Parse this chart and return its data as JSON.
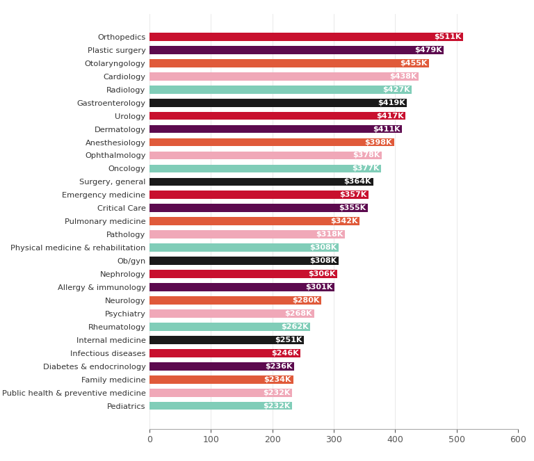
{
  "categories": [
    "Orthopedics",
    "Plastic surgery",
    "Otolaryngology",
    "Cardiology",
    "Radiology",
    "Gastroenterology",
    "Urology",
    "Dermatology",
    "Anesthesiology",
    "Ophthalmology",
    "Oncology",
    "Surgery, general",
    "Emergency medicine",
    "Critical Care",
    "Pulmonary medicine",
    "Pathology",
    "Physical medicine & rehabilitation",
    "Ob/gyn",
    "Nephrology",
    "Allergy & immunology",
    "Neurology",
    "Psychiatry",
    "Rheumatology",
    "Internal medicine",
    "Infectious diseases",
    "Diabetes & endocrinology",
    "Family medicine",
    "Public health & preventive medicine",
    "Pediatrics"
  ],
  "values": [
    511,
    479,
    455,
    438,
    427,
    419,
    417,
    411,
    398,
    378,
    377,
    364,
    357,
    355,
    342,
    318,
    308,
    308,
    306,
    301,
    280,
    268,
    262,
    251,
    246,
    236,
    234,
    232,
    232
  ],
  "colors": [
    "#C8102E",
    "#5C0A4E",
    "#E05A3A",
    "#F0A8B8",
    "#80CDB8",
    "#1A1A1A",
    "#C8102E",
    "#5C0A4E",
    "#E05A3A",
    "#F0A8B8",
    "#80CDB8",
    "#1A1A1A",
    "#C8102E",
    "#5C0A4E",
    "#E05A3A",
    "#F0A8B8",
    "#80CDB8",
    "#1A1A1A",
    "#C8102E",
    "#5C0A4E",
    "#E05A3A",
    "#F0A8B8",
    "#80CDB8",
    "#1A1A1A",
    "#C8102E",
    "#5C0A4E",
    "#E05A3A",
    "#F0A8B8",
    "#80CDB8"
  ],
  "label_color": "#FFFFFF",
  "background_color": "#FFFFFF",
  "xlim": [
    0,
    600
  ],
  "xticks": [
    0,
    100,
    200,
    300,
    400,
    500,
    600
  ],
  "bar_height": 0.62,
  "label_fontsize": 8.0,
  "tick_fontsize": 9.0,
  "category_fontsize": 8.2
}
